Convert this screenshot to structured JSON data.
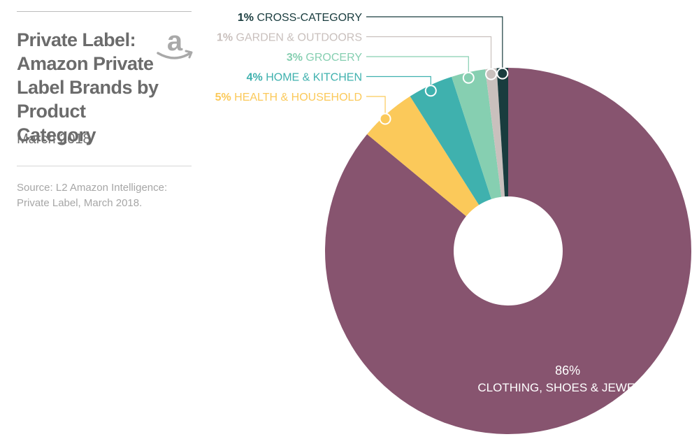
{
  "header": {
    "title": "Private Label: Amazon Private Label Brands by Product Category",
    "subtitle": "March 2018",
    "source": "Source: L2 Amazon Intelligence: Private Label, March 2018."
  },
  "logo": {
    "icon": "amazon-logo-icon",
    "letter": "a",
    "color": "#a9a9a9"
  },
  "chart_data": {
    "type": "pie",
    "style": "donut",
    "title": "Private Label: Amazon Private Label Brands by Product Category",
    "subtitle": "March 2018",
    "slices": [
      {
        "label": "CLOTHING, SHOES & JEWELRY",
        "pct_text": "86%",
        "value": 86,
        "color": "#87546f"
      },
      {
        "label": "HEALTH & HOUSEHOLD",
        "pct_text": "5%",
        "value": 5,
        "color": "#fbc95a"
      },
      {
        "label": "HOME & KITCHEN",
        "pct_text": "4%",
        "value": 4,
        "color": "#3fb1ae"
      },
      {
        "label": "GROCERY",
        "pct_text": "3%",
        "value": 3,
        "color": "#86cfb1"
      },
      {
        "label": "GARDEN & OUTDOORS",
        "pct_text": "1%",
        "value": 1,
        "color": "#c9c0bd"
      },
      {
        "label": "CROSS-CATEGORY",
        "pct_text": "1%",
        "value": 1,
        "color": "#193c3e"
      }
    ]
  }
}
